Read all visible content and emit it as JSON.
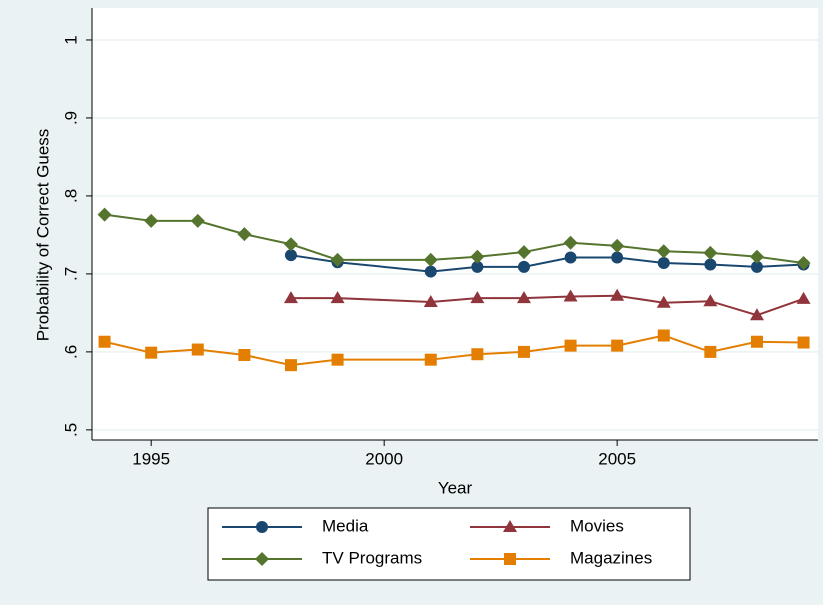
{
  "chart_data": {
    "type": "line",
    "x_label": "Year",
    "y_label": "Probability of Correct Guess",
    "x": [
      1994,
      1995,
      1996,
      1997,
      1998,
      1999,
      2001,
      2002,
      2003,
      2004,
      2005,
      2006,
      2007,
      2008,
      2009
    ],
    "series": [
      {
        "name": "Media",
        "color": "#1a476f",
        "marker": "circle",
        "values": [
          null,
          null,
          null,
          null,
          0.724,
          0.715,
          0.703,
          0.709,
          0.709,
          0.721,
          0.721,
          0.714,
          0.712,
          0.709,
          0.712
        ]
      },
      {
        "name": "Movies",
        "color": "#90353b",
        "marker": "triangle",
        "values": [
          null,
          null,
          null,
          null,
          0.669,
          0.669,
          0.664,
          0.669,
          0.669,
          0.671,
          0.672,
          0.663,
          0.665,
          0.647,
          0.668
        ]
      },
      {
        "name": "TV Programs",
        "color": "#55752f",
        "marker": "diamond",
        "values": [
          0.776,
          0.768,
          0.768,
          0.751,
          0.738,
          0.718,
          0.718,
          0.722,
          0.728,
          0.74,
          0.736,
          0.729,
          0.727,
          0.722,
          0.714
        ]
      },
      {
        "name": "Magazines",
        "color": "#e37e00",
        "marker": "square",
        "values": [
          0.613,
          0.599,
          0.603,
          0.596,
          0.583,
          0.59,
          0.59,
          0.597,
          0.6,
          0.608,
          0.608,
          0.621,
          0.6,
          0.613,
          0.612
        ]
      }
    ],
    "xlim": [
      1993.73,
      2009.31
    ],
    "xticks": [
      1995,
      2000,
      2005
    ],
    "ylim": [
      0.487,
      1.041
    ],
    "yticks": [
      {
        "value": 0.5,
        "label": ".5"
      },
      {
        "value": 0.6,
        "label": ".6"
      },
      {
        "value": 0.7,
        "label": ".7"
      },
      {
        "value": 0.8,
        "label": ".8"
      },
      {
        "value": 0.9,
        "label": ".9"
      },
      {
        "value": 1,
        "label": "1"
      }
    ],
    "grid": true,
    "legend_position": "bottom"
  }
}
